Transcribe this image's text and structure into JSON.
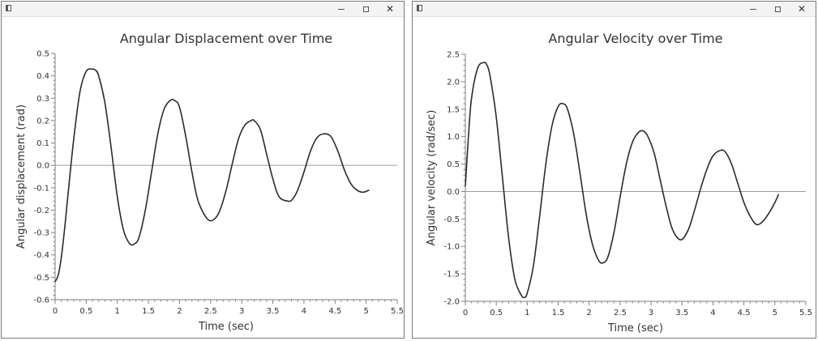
{
  "windows": [
    {
      "id": "w1",
      "window_title": "",
      "icons": {
        "app": "window-icon",
        "minimize": "minimize-icon",
        "maximize": "maximize-icon",
        "close": "close-icon"
      },
      "close_glyph": "✕",
      "chart_data": {
        "type": "line",
        "title": "Angular Displacement over Time",
        "xlabel": "Time (sec)",
        "ylabel": "Angular displacement (rad)",
        "xlim": [
          0,
          5.5
        ],
        "ylim": [
          -0.6,
          0.5
        ],
        "xticks": [
          0,
          0.5,
          1,
          1.5,
          2,
          2.5,
          3,
          3.5,
          4,
          4.5,
          5,
          5.5
        ],
        "xtick_labels": [
          "0",
          "0.5",
          "1",
          "1.5",
          "2",
          "2.5",
          "3",
          "3.5",
          "4",
          "4.5",
          "5",
          "5.5"
        ],
        "yticks": [
          0.5,
          0.4,
          0.3,
          0.2,
          0.1,
          0.0,
          -0.1,
          -0.2,
          -0.3,
          -0.4,
          -0.5,
          -0.6
        ],
        "ytick_labels": [
          "0.5",
          "0.4",
          "0.3",
          "0.2",
          "0.1",
          "0.0",
          "-0.1",
          "-0.2",
          "-0.3",
          "-0.4",
          "-0.5",
          "-0.6"
        ],
        "grid": false,
        "zero_line": true,
        "line_color": "#2b2b2b",
        "series": [
          {
            "x": [
              0,
              0.05,
              0.1,
              0.15,
              0.2,
              0.3,
              0.4,
              0.5,
              0.6,
              0.65,
              0.7,
              0.8,
              0.9,
              1.0,
              1.1,
              1.2,
              1.28,
              1.35,
              1.45,
              1.55,
              1.65,
              1.75,
              1.85,
              1.92,
              2.0,
              2.1,
              2.2,
              2.3,
              2.45,
              2.56,
              2.65,
              2.75,
              2.85,
              2.95,
              3.05,
              3.15,
              3.2,
              3.3,
              3.4,
              3.5,
              3.6,
              3.75,
              3.82,
              3.9,
              4.0,
              4.1,
              4.2,
              4.3,
              4.43,
              4.55,
              4.65,
              4.75,
              4.85,
              4.95,
              5.05
            ],
            "y": [
              -0.52,
              -0.49,
              -0.41,
              -0.29,
              -0.15,
              0.12,
              0.33,
              0.42,
              0.43,
              0.425,
              0.4,
              0.28,
              0.08,
              -0.14,
              -0.29,
              -0.35,
              -0.35,
              -0.32,
              -0.2,
              -0.03,
              0.14,
              0.25,
              0.29,
              0.29,
              0.26,
              0.13,
              -0.03,
              -0.16,
              -0.24,
              -0.24,
              -0.2,
              -0.11,
              0.01,
              0.12,
              0.18,
              0.2,
              0.2,
              0.16,
              0.05,
              -0.06,
              -0.14,
              -0.16,
              -0.15,
              -0.11,
              -0.03,
              0.06,
              0.12,
              0.14,
              0.13,
              0.06,
              -0.02,
              -0.08,
              -0.11,
              -0.12,
              -0.11
            ]
          }
        ]
      }
    },
    {
      "id": "w2",
      "window_title": "",
      "icons": {
        "app": "window-icon",
        "minimize": "minimize-icon",
        "maximize": "maximize-icon",
        "close": "close-icon"
      },
      "close_glyph": "✕",
      "chart_data": {
        "type": "line",
        "title": "Angular Velocity over Time",
        "xlabel": "Time (sec)",
        "ylabel": "Angular velocity (rad/sec)",
        "xlim": [
          0,
          5.5
        ],
        "ylim": [
          -2.0,
          2.5
        ],
        "xticks": [
          0,
          0.5,
          1,
          1.5,
          2,
          2.5,
          3,
          3.5,
          4,
          4.5,
          5,
          5.5
        ],
        "xtick_labels": [
          "0",
          "0.5",
          "1",
          "1.5",
          "2",
          "2.5",
          "3",
          "3.5",
          "4",
          "4.5",
          "5",
          "5.5"
        ],
        "yticks": [
          2.5,
          2.0,
          1.5,
          1.0,
          0.5,
          0.0,
          -0.5,
          -1.0,
          -1.5,
          -2.0
        ],
        "ytick_labels": [
          "2.5",
          "2.0",
          "1.5",
          "1.0",
          "0.5",
          "0.0",
          "-0.5",
          "-1.0",
          "-1.5",
          "-2.0"
        ],
        "grid": false,
        "zero_line": true,
        "line_color": "#2b2b2b",
        "series": [
          {
            "x": [
              0,
              0.05,
              0.1,
              0.2,
              0.3,
              0.35,
              0.4,
              0.5,
              0.6,
              0.7,
              0.8,
              0.9,
              0.95,
              1.0,
              1.1,
              1.2,
              1.3,
              1.4,
              1.5,
              1.58,
              1.65,
              1.75,
              1.85,
              1.95,
              2.05,
              2.15,
              2.22,
              2.3,
              2.4,
              2.5,
              2.6,
              2.7,
              2.8,
              2.88,
              2.95,
              3.05,
              3.15,
              3.25,
              3.35,
              3.48,
              3.6,
              3.7,
              3.8,
              3.9,
              4.0,
              4.12,
              4.2,
              4.3,
              4.4,
              4.5,
              4.6,
              4.7,
              4.8,
              4.9,
              5.0,
              5.06
            ],
            "y": [
              0.1,
              1.0,
              1.7,
              2.25,
              2.35,
              2.3,
              2.1,
              1.35,
              0.25,
              -0.85,
              -1.6,
              -1.88,
              -1.93,
              -1.85,
              -1.35,
              -0.45,
              0.5,
              1.2,
              1.55,
              1.6,
              1.5,
              1.05,
              0.35,
              -0.4,
              -0.95,
              -1.25,
              -1.3,
              -1.2,
              -0.75,
              -0.1,
              0.5,
              0.9,
              1.08,
              1.1,
              1.0,
              0.7,
              0.2,
              -0.3,
              -0.7,
              -0.88,
              -0.7,
              -0.35,
              0.05,
              0.4,
              0.65,
              0.75,
              0.72,
              0.5,
              0.15,
              -0.2,
              -0.45,
              -0.6,
              -0.55,
              -0.4,
              -0.2,
              -0.05
            ]
          }
        ]
      }
    }
  ]
}
